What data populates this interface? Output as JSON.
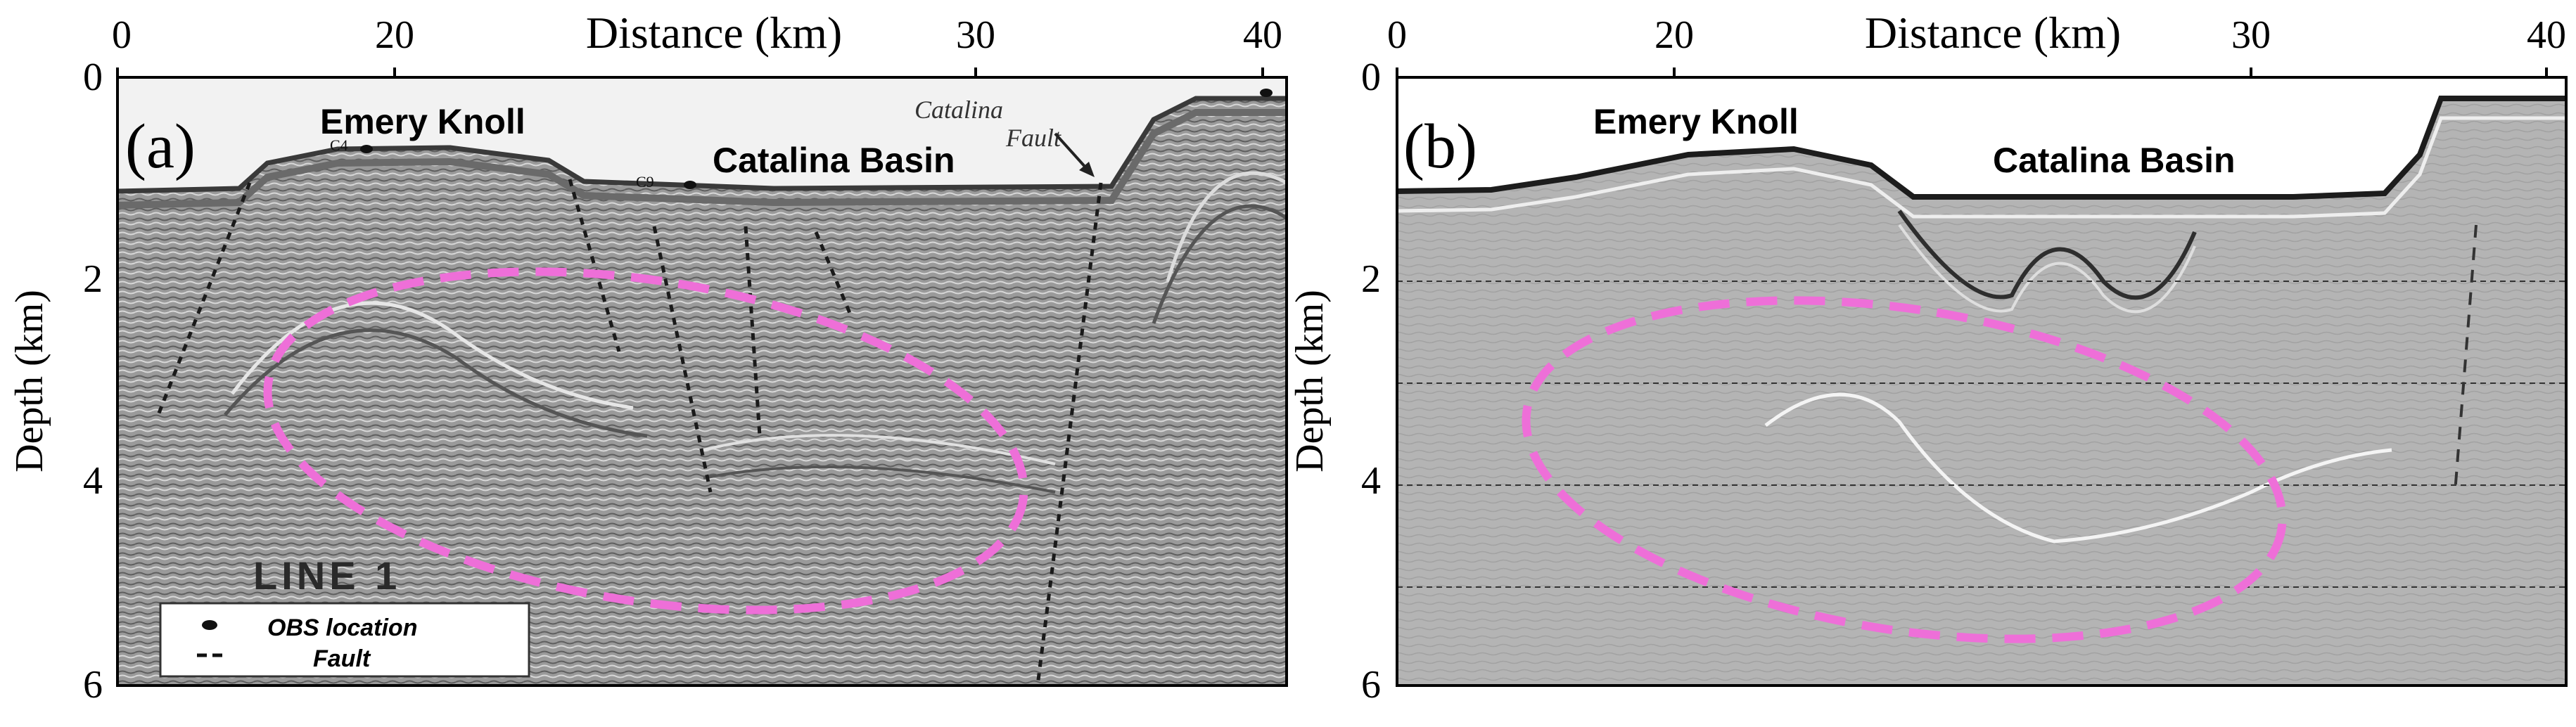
{
  "colors": {
    "ellipse": "#ee6fd8",
    "frame": "#000000",
    "fault": "#1a1a1a",
    "bg_a_light": "#dcdcdc",
    "bg_a_dark": "#8a8a8a",
    "bg_b": "#b8b8b8"
  },
  "panel_a": {
    "label": "(a)",
    "x_axis_title": "Distance (km)",
    "y_axis_title": "Depth (km)",
    "x_ticks": [
      "0",
      "20",
      "30",
      "40"
    ],
    "y_ticks": [
      "0",
      "2",
      "4",
      "6"
    ],
    "features": {
      "emery_knoll": "Emery Knoll",
      "catalina_basin": "Catalina Basin",
      "catalina_fault_1": "Catalina",
      "catalina_fault_2": "Fault",
      "obs_c4": "C4",
      "obs_c9": "C9",
      "line_label": "LINE 1"
    },
    "legend": {
      "obs_location": "OBS location",
      "fault": "Fault"
    }
  },
  "panel_b": {
    "label": "(b)",
    "x_axis_title": "Distance (km)",
    "y_axis_title": "Depth (km)",
    "x_ticks": [
      "0",
      "20",
      "30",
      "40"
    ],
    "y_ticks": [
      "0",
      "2",
      "4",
      "6"
    ],
    "features": {
      "emery_knoll": "Emery Knoll",
      "catalina_basin": "Catalina Basin"
    }
  }
}
